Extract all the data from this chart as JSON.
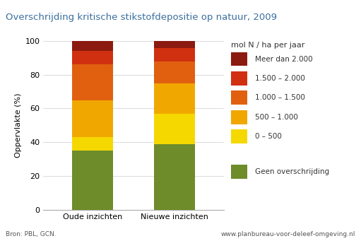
{
  "title": "Overschrijding kritische stikstofdepositie op natuur, 2009",
  "ylabel": "Oppervlakte (%)",
  "categories": [
    "Oude inzichten",
    "Nieuwe inzichten"
  ],
  "segments": [
    {
      "label": "Geen overschrijding",
      "color": "#6e8c2a",
      "values": [
        35,
        39
      ]
    },
    {
      "label": "0 – 500",
      "color": "#f5d800",
      "values": [
        8,
        18
      ]
    },
    {
      "label": "500 – 1.000",
      "color": "#f0a800",
      "values": [
        22,
        18
      ]
    },
    {
      "label": "1.000 – 1.500",
      "color": "#e06010",
      "values": [
        21,
        13
      ]
    },
    {
      "label": "1.500 – 2.000",
      "color": "#d03010",
      "values": [
        8,
        8
      ]
    },
    {
      "label": "Meer dan 2.000",
      "color": "#8b1a10",
      "values": [
        6,
        4
      ]
    }
  ],
  "legend_title": "mol N / ha per jaar",
  "ylim": [
    0,
    100
  ],
  "yticks": [
    0,
    20,
    40,
    60,
    80,
    100
  ],
  "bar_width": 0.5,
  "source_left": "Bron: PBL, GCN.",
  "source_right": "www.planbureau­voor­deleef­omgeving.nl",
  "title_bg_color": "#dce9f5",
  "title_color": "#3a6e9e",
  "title_fontsize": 9.5,
  "axis_fontsize": 8,
  "legend_title_fontsize": 8,
  "legend_fontsize": 7.5,
  "source_fontsize": 6.5
}
